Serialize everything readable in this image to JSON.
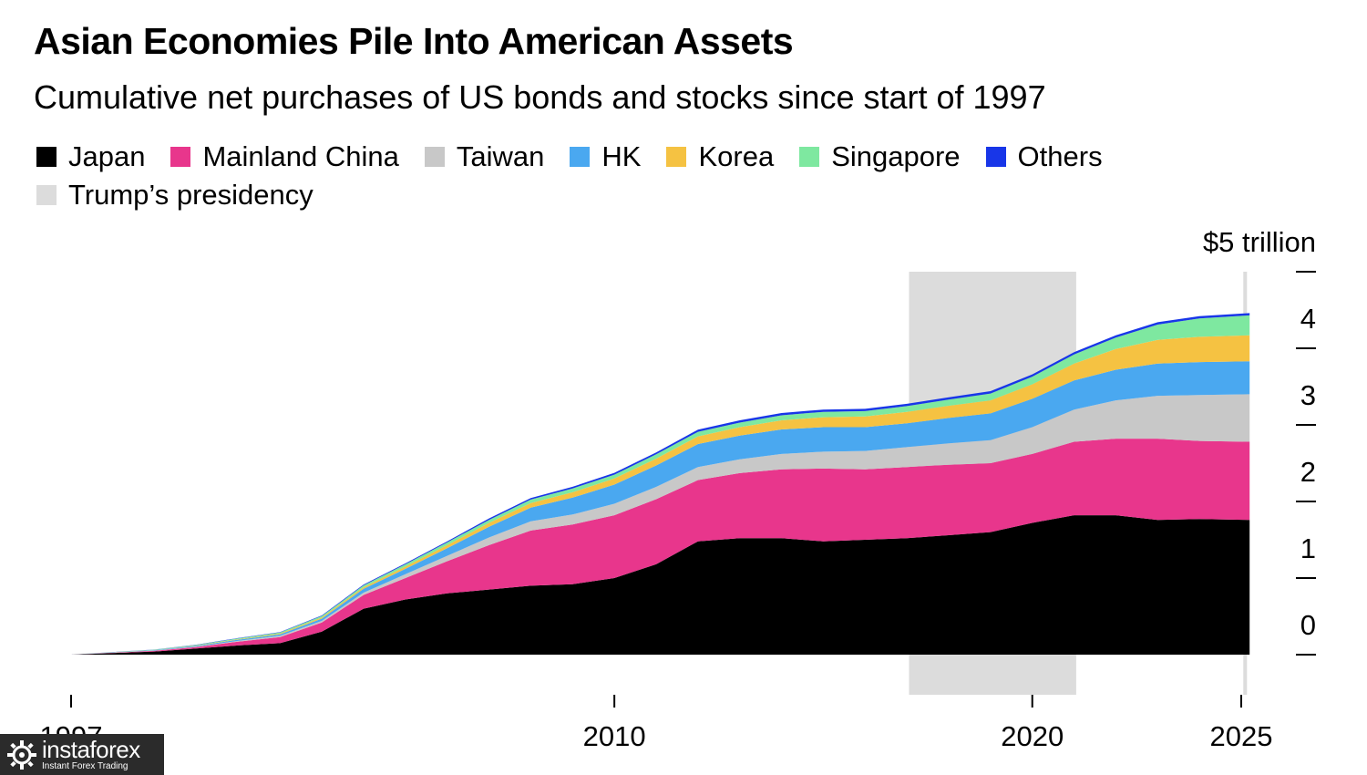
{
  "title": "Asian Economies Pile Into American Assets",
  "subtitle": "Cumulative net purchases of US bonds and stocks since start of 1997",
  "legend": [
    {
      "label": "Japan",
      "color": "#000000"
    },
    {
      "label": "Mainland China",
      "color": "#e8368c"
    },
    {
      "label": "Taiwan",
      "color": "#c8c8c8"
    },
    {
      "label": "HK",
      "color": "#4aa8f0"
    },
    {
      "label": "Korea",
      "color": "#f5c242"
    },
    {
      "label": "Singapore",
      "color": "#7ee8a0"
    },
    {
      "label": "Others",
      "color": "#1836e8"
    },
    {
      "label": "Trump’s presidency",
      "color": "#dcdcdc"
    }
  ],
  "watermark": {
    "brand": "instaforex",
    "tagline": "Instant Forex Trading"
  },
  "chart_data": {
    "type": "area",
    "stacked": true,
    "title": "Asian Economies Pile Into American Assets",
    "subtitle": "Cumulative net purchases of US bonds and stocks since start of 1997",
    "y_unit_label": "$5 trillion",
    "y_ticks": [
      {
        "value": 0,
        "label": "0"
      },
      {
        "value": 1,
        "label": "1"
      },
      {
        "value": 2,
        "label": "2"
      },
      {
        "value": 3,
        "label": "3"
      },
      {
        "value": 4,
        "label": "4"
      },
      {
        "value": 5,
        "label": "$5 trillion"
      }
    ],
    "ylim": [
      0,
      5
    ],
    "x_ticks": [
      {
        "value": 1997,
        "label": "1997"
      },
      {
        "value": 2010,
        "label": "2010"
      },
      {
        "value": 2020,
        "label": "2020"
      },
      {
        "value": 2025,
        "label": "2025"
      }
    ],
    "xlim": [
      1997,
      2025.5
    ],
    "shaded_periods": [
      {
        "label": "Trump’s presidency",
        "start": 2017.05,
        "end": 2021.05
      },
      {
        "label": "Trump’s presidency",
        "start": 2025.05,
        "end": 2025.2
      }
    ],
    "x": [
      1997,
      1998,
      1999,
      2000,
      2001,
      2002,
      2003,
      2004,
      2005,
      2006,
      2007,
      2008,
      2009,
      2010,
      2011,
      2012,
      2013,
      2014,
      2015,
      2016,
      2017,
      2018,
      2019,
      2020,
      2021,
      2022,
      2023,
      2024,
      2025.2
    ],
    "series": [
      {
        "name": "Japan",
        "values": [
          0,
          0.02,
          0.04,
          0.08,
          0.12,
          0.15,
          0.3,
          0.6,
          0.72,
          0.8,
          0.85,
          0.9,
          0.92,
          1.0,
          1.18,
          1.48,
          1.52,
          1.52,
          1.48,
          1.5,
          1.52,
          1.56,
          1.6,
          1.72,
          1.82,
          1.82,
          1.76,
          1.77,
          1.76
        ]
      },
      {
        "name": "Mainland China",
        "values": [
          0,
          0.005,
          0.01,
          0.02,
          0.05,
          0.08,
          0.12,
          0.18,
          0.28,
          0.42,
          0.58,
          0.72,
          0.78,
          0.82,
          0.85,
          0.8,
          0.85,
          0.9,
          0.95,
          0.92,
          0.93,
          0.92,
          0.9,
          0.9,
          0.96,
          1.0,
          1.06,
          1.02,
          1.02
        ]
      },
      {
        "name": "Taiwan",
        "values": [
          0,
          0.002,
          0.004,
          0.006,
          0.01,
          0.015,
          0.02,
          0.03,
          0.05,
          0.07,
          0.1,
          0.12,
          0.13,
          0.15,
          0.16,
          0.17,
          0.18,
          0.2,
          0.22,
          0.24,
          0.26,
          0.28,
          0.3,
          0.35,
          0.42,
          0.5,
          0.56,
          0.6,
          0.62
        ]
      },
      {
        "name": "HK",
        "values": [
          0,
          0.003,
          0.005,
          0.01,
          0.015,
          0.02,
          0.03,
          0.05,
          0.07,
          0.1,
          0.14,
          0.18,
          0.22,
          0.25,
          0.28,
          0.3,
          0.31,
          0.32,
          0.32,
          0.31,
          0.31,
          0.33,
          0.35,
          0.37,
          0.38,
          0.4,
          0.42,
          0.43,
          0.43
        ]
      },
      {
        "name": "Korea",
        "values": [
          0,
          0.001,
          0.002,
          0.004,
          0.006,
          0.01,
          0.015,
          0.02,
          0.03,
          0.04,
          0.05,
          0.06,
          0.07,
          0.08,
          0.09,
          0.1,
          0.11,
          0.12,
          0.13,
          0.14,
          0.15,
          0.16,
          0.17,
          0.19,
          0.22,
          0.27,
          0.31,
          0.33,
          0.34
        ]
      },
      {
        "name": "Singapore",
        "values": [
          0,
          0.002,
          0.004,
          0.008,
          0.012,
          0.015,
          0.02,
          0.025,
          0.03,
          0.035,
          0.04,
          0.045,
          0.05,
          0.05,
          0.055,
          0.06,
          0.06,
          0.065,
          0.07,
          0.07,
          0.075,
          0.08,
          0.09,
          0.1,
          0.12,
          0.15,
          0.2,
          0.24,
          0.26
        ]
      },
      {
        "name": "Others",
        "values": [
          0,
          0.001,
          0.002,
          0.003,
          0.004,
          0.005,
          0.007,
          0.01,
          0.012,
          0.015,
          0.018,
          0.02,
          0.022,
          0.024,
          0.026,
          0.028,
          0.03,
          0.03,
          0.03,
          0.03,
          0.03,
          0.03,
          0.03,
          0.03,
          0.03,
          0.03,
          0.03,
          0.03,
          0.03
        ]
      }
    ]
  }
}
